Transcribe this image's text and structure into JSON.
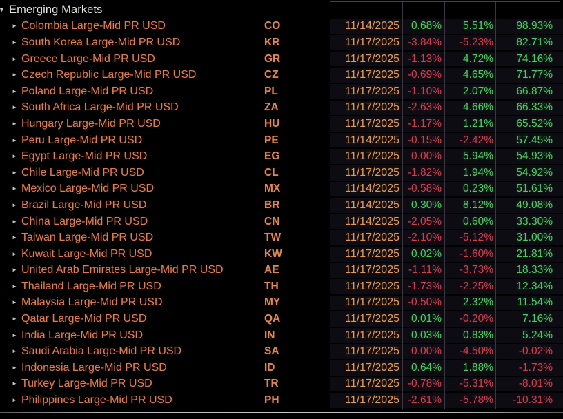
{
  "colors": {
    "bg": "#000000",
    "name_orange": "#dd7f4e",
    "code_orange": "#dd8a52",
    "date_orange": "#e09a58",
    "up_green": "#4fcb63",
    "down_red": "#c9414f",
    "header_text": "#e6e3dc",
    "arrow_gray": "#cbc5ba",
    "divider": "#3a3740",
    "bottom_line": "#a9a9a9",
    "top_line": "#45414b"
  },
  "header": {
    "group_label": "Emerging Markets",
    "expanded_icon": "▼",
    "row_icon": "►"
  },
  "table": {
    "rows": [
      {
        "name": "Colombia Large-Mid PR USD",
        "code": "CO",
        "date": "11/14/2025",
        "d1": {
          "v": "0.68%",
          "tone": "up"
        },
        "d2": {
          "v": "5.51%",
          "tone": "up"
        },
        "d3": {
          "v": "98.93%",
          "tone": "up"
        }
      },
      {
        "name": "South Korea Large-Mid PR USD",
        "code": "KR",
        "date": "11/17/2025",
        "d1": {
          "v": "-3.84%",
          "tone": "down"
        },
        "d2": {
          "v": "-5.23%",
          "tone": "down"
        },
        "d3": {
          "v": "82.71%",
          "tone": "up"
        }
      },
      {
        "name": "Greece Large-Mid PR USD",
        "code": "GR",
        "date": "11/17/2025",
        "d1": {
          "v": "-1.13%",
          "tone": "down"
        },
        "d2": {
          "v": "4.72%",
          "tone": "up"
        },
        "d3": {
          "v": "74.16%",
          "tone": "up"
        }
      },
      {
        "name": "Czech Republic Large-Mid PR USD",
        "code": "CZ",
        "date": "11/17/2025",
        "d1": {
          "v": "-0.69%",
          "tone": "down"
        },
        "d2": {
          "v": "4.65%",
          "tone": "up"
        },
        "d3": {
          "v": "71.77%",
          "tone": "up"
        }
      },
      {
        "name": "Poland Large-Mid PR USD",
        "code": "PL",
        "date": "11/17/2025",
        "d1": {
          "v": "-1.10%",
          "tone": "down"
        },
        "d2": {
          "v": "2.07%",
          "tone": "up"
        },
        "d3": {
          "v": "66.87%",
          "tone": "up"
        }
      },
      {
        "name": "South Africa Large-Mid PR USD",
        "code": "ZA",
        "date": "11/17/2025",
        "d1": {
          "v": "-2.63%",
          "tone": "down"
        },
        "d2": {
          "v": "4.66%",
          "tone": "up"
        },
        "d3": {
          "v": "66.33%",
          "tone": "up"
        }
      },
      {
        "name": "Hungary Large-Mid PR USD",
        "code": "HU",
        "date": "11/17/2025",
        "d1": {
          "v": "-1.17%",
          "tone": "down"
        },
        "d2": {
          "v": "1.21%",
          "tone": "up"
        },
        "d3": {
          "v": "65.52%",
          "tone": "up"
        }
      },
      {
        "name": "Peru Large-Mid PR USD",
        "code": "PE",
        "date": "11/14/2025",
        "d1": {
          "v": "-0.15%",
          "tone": "down"
        },
        "d2": {
          "v": "-2.42%",
          "tone": "down"
        },
        "d3": {
          "v": "57.45%",
          "tone": "up"
        }
      },
      {
        "name": "Egypt Large-Mid PR USD",
        "code": "EG",
        "date": "11/17/2025",
        "d1": {
          "v": "0.00%",
          "tone": "down"
        },
        "d2": {
          "v": "5.94%",
          "tone": "up"
        },
        "d3": {
          "v": "54.93%",
          "tone": "up"
        }
      },
      {
        "name": "Chile Large-Mid PR USD",
        "code": "CL",
        "date": "11/17/2025",
        "d1": {
          "v": "-1.82%",
          "tone": "down"
        },
        "d2": {
          "v": "1.94%",
          "tone": "up"
        },
        "d3": {
          "v": "54.92%",
          "tone": "up"
        }
      },
      {
        "name": "Mexico Large-Mid PR USD",
        "code": "MX",
        "date": "11/14/2025",
        "d1": {
          "v": "-0.58%",
          "tone": "down"
        },
        "d2": {
          "v": "0.23%",
          "tone": "up"
        },
        "d3": {
          "v": "51.61%",
          "tone": "up"
        }
      },
      {
        "name": "Brazil Large-Mid PR USD",
        "code": "BR",
        "date": "11/14/2025",
        "d1": {
          "v": "0.30%",
          "tone": "up"
        },
        "d2": {
          "v": "8.12%",
          "tone": "up"
        },
        "d3": {
          "v": "49.08%",
          "tone": "up"
        }
      },
      {
        "name": "China Large-Mid PR USD",
        "code": "CN",
        "date": "11/14/2025",
        "d1": {
          "v": "-2.05%",
          "tone": "down"
        },
        "d2": {
          "v": "0.60%",
          "tone": "up"
        },
        "d3": {
          "v": "33.30%",
          "tone": "up"
        }
      },
      {
        "name": "Taiwan Large-Mid PR USD",
        "code": "TW",
        "date": "11/17/2025",
        "d1": {
          "v": "-2.10%",
          "tone": "down"
        },
        "d2": {
          "v": "-5.12%",
          "tone": "down"
        },
        "d3": {
          "v": "31.00%",
          "tone": "up"
        }
      },
      {
        "name": "Kuwait Large-Mid PR USD",
        "code": "KW",
        "date": "11/17/2025",
        "d1": {
          "v": "0.02%",
          "tone": "up"
        },
        "d2": {
          "v": "-1.60%",
          "tone": "down"
        },
        "d3": {
          "v": "21.81%",
          "tone": "up"
        }
      },
      {
        "name": "United Arab Emirates Large-Mid PR USD",
        "code": "AE",
        "date": "11/17/2025",
        "d1": {
          "v": "-1.11%",
          "tone": "down"
        },
        "d2": {
          "v": "-3.73%",
          "tone": "down"
        },
        "d3": {
          "v": "18.33%",
          "tone": "up"
        }
      },
      {
        "name": "Thailand Large-Mid PR USD",
        "code": "TH",
        "date": "11/17/2025",
        "d1": {
          "v": "-1.73%",
          "tone": "down"
        },
        "d2": {
          "v": "-2.25%",
          "tone": "down"
        },
        "d3": {
          "v": "12.34%",
          "tone": "up"
        }
      },
      {
        "name": "Malaysia Large-Mid PR USD",
        "code": "MY",
        "date": "11/17/2025",
        "d1": {
          "v": "-0.50%",
          "tone": "down"
        },
        "d2": {
          "v": "2.32%",
          "tone": "up"
        },
        "d3": {
          "v": "11.54%",
          "tone": "up"
        }
      },
      {
        "name": "Qatar Large-Mid PR USD",
        "code": "QA",
        "date": "11/17/2025",
        "d1": {
          "v": "0.01%",
          "tone": "up"
        },
        "d2": {
          "v": "-0.20%",
          "tone": "down"
        },
        "d3": {
          "v": "7.16%",
          "tone": "up"
        }
      },
      {
        "name": "India Large-Mid PR USD",
        "code": "IN",
        "date": "11/17/2025",
        "d1": {
          "v": "0.03%",
          "tone": "up"
        },
        "d2": {
          "v": "0.83%",
          "tone": "up"
        },
        "d3": {
          "v": "5.24%",
          "tone": "up"
        }
      },
      {
        "name": "Saudi Arabia Large-Mid PR USD",
        "code": "SA",
        "date": "11/17/2025",
        "d1": {
          "v": "0.00%",
          "tone": "down"
        },
        "d2": {
          "v": "-4.50%",
          "tone": "down"
        },
        "d3": {
          "v": "-0.02%",
          "tone": "down"
        }
      },
      {
        "name": "Indonesia Large-Mid PR USD",
        "code": "ID",
        "date": "11/17/2025",
        "d1": {
          "v": "0.64%",
          "tone": "up"
        },
        "d2": {
          "v": "1.88%",
          "tone": "up"
        },
        "d3": {
          "v": "-1.73%",
          "tone": "down"
        }
      },
      {
        "name": "Turkey Large-Mid PR USD",
        "code": "TR",
        "date": "11/17/2025",
        "d1": {
          "v": "-0.78%",
          "tone": "down"
        },
        "d2": {
          "v": "-5.31%",
          "tone": "down"
        },
        "d3": {
          "v": "-8.01%",
          "tone": "down"
        }
      },
      {
        "name": "Philippines Large-Mid PR USD",
        "code": "PH",
        "date": "11/17/2025",
        "d1": {
          "v": "-2.61%",
          "tone": "down"
        },
        "d2": {
          "v": "-5.78%",
          "tone": "down"
        },
        "d3": {
          "v": "-10.31%",
          "tone": "down"
        }
      }
    ]
  }
}
